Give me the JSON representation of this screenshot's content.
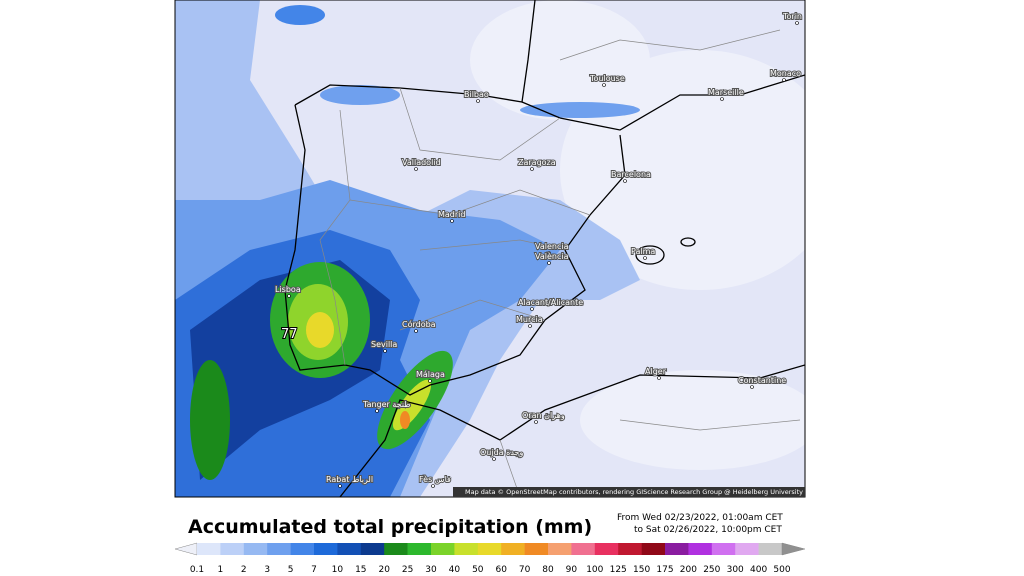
{
  "map": {
    "cities": [
      "Torin",
      "Monaco",
      "Toulouse",
      "Marseille",
      "Bilbao",
      "Valladolid",
      "Zaragoza",
      "Barcelona",
      "Madrid",
      "Valencia",
      "València",
      "Palma",
      "Lisboa",
      "Alacant/Alicante",
      "Murcia",
      "Córdoba",
      "Sevilla",
      "Málaga",
      "Alger",
      "Constantine",
      "Tanger طنجة",
      "Oran وهران",
      "Oujda وجدة",
      "Rabat الرباط",
      "Fès فاس"
    ],
    "peak_label": "77",
    "attribution": "Map data © OpenStreetMap contributors, rendering GIScience Research Group @ Heidelberg University"
  },
  "legend": {
    "title": "Accumulated total precipitation (mm)",
    "period_from": "From Wed 02/23/2022, 01:00am CET",
    "period_to": "to Sat 02/26/2022, 10:00pm CET",
    "labels": [
      "0.1",
      "1",
      "2",
      "3",
      "5",
      "7",
      "10",
      "15",
      "20",
      "25",
      "30",
      "40",
      "50",
      "60",
      "70",
      "80",
      "90",
      "100",
      "125",
      "150",
      "175",
      "200",
      "250",
      "300",
      "400",
      "500"
    ]
  }
}
